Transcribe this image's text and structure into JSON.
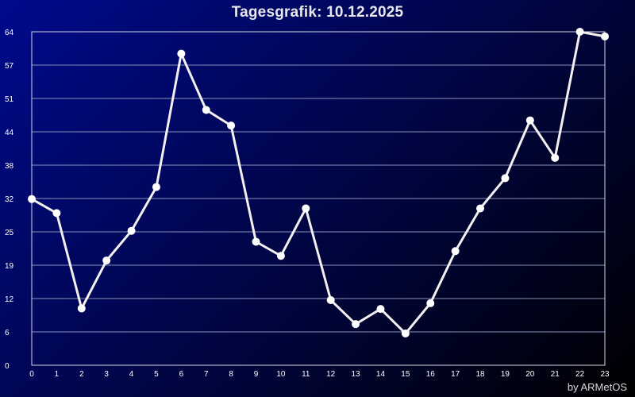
{
  "chart_data": {
    "type": "line",
    "title": "Tagesgrafik: 10.12.2025",
    "xlabel": "",
    "ylabel": "",
    "x": [
      0,
      1,
      2,
      3,
      4,
      5,
      6,
      7,
      8,
      9,
      10,
      11,
      12,
      13,
      14,
      15,
      16,
      17,
      18,
      19,
      20,
      21,
      22,
      23
    ],
    "xticks": [
      "0",
      "1",
      "2",
      "3",
      "4",
      "5",
      "6",
      "7",
      "8",
      "9",
      "10",
      "11",
      "12",
      "13",
      "14",
      "15",
      "16",
      "17",
      "18",
      "19",
      "20",
      "21",
      "22",
      "23"
    ],
    "yticks": [
      "0",
      "6",
      "12",
      "19",
      "25",
      "32",
      "38",
      "44",
      "51",
      "57",
      "64"
    ],
    "ylim": [
      0,
      64
    ],
    "grid": true,
    "series": [
      {
        "values": [
          31.9,
          29.2,
          10.9,
          20.1,
          25.8,
          34.2,
          59.8,
          49.0,
          46.0,
          23.7,
          21.0,
          30.1,
          12.5,
          7.9,
          10.8,
          6.1,
          11.9,
          21.9,
          30.1,
          35.9,
          47.0,
          39.8,
          64.0,
          63.1
        ],
        "color": "#ffffff"
      }
    ]
  },
  "footer": {
    "credit": "by ARMetOS"
  },
  "colors": {
    "line": "#f4f0f0",
    "marker": "#ffffff",
    "grid": "#8890b8",
    "axis_text": "#ffffff"
  }
}
